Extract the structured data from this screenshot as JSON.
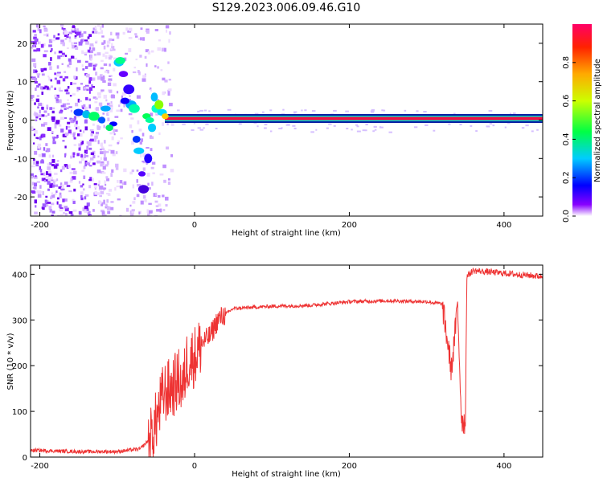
{
  "title": "S129.2023.006.09.46.G10",
  "colors": {
    "snr_line": "#ee3333",
    "carrier": "#ee1144",
    "frame": "#000000"
  },
  "chart_data": [
    {
      "type": "heatmap",
      "xlabel": "Height of straight line (km)",
      "ylabel": "Frequency (Hz)",
      "xlim": [
        -212,
        450
      ],
      "ylim": [
        -25,
        25
      ],
      "x_ticks": [
        -200,
        0,
        200,
        400
      ],
      "y_ticks": [
        -20,
        -10,
        0,
        10,
        20
      ],
      "colorbar": {
        "label": "Normalized spectral amplitude",
        "range": [
          0,
          1
        ],
        "ticks": [
          "0.0",
          "0.2",
          "0.4",
          "0.6",
          "0.8"
        ],
        "colormap": "rainbow"
      },
      "features": [
        {
          "x_start": -212,
          "x_end": -110,
          "description_value": "scattered low-amplitude noise at all frequencies"
        },
        {
          "x_start": -110,
          "x_end": -35,
          "freq": 15,
          "note": "bright branch near 15 Hz at -97 km"
        },
        {
          "x_start": -35,
          "x_end": 450,
          "freq": 0,
          "amplitude": 0.95
        }
      ]
    },
    {
      "type": "line",
      "xlabel": "Height of straight line (km)",
      "ylabel": "SNR (10 * v/v)",
      "xlim": [
        -212,
        450
      ],
      "ylim": [
        0,
        420
      ],
      "x_ticks": [
        -200,
        0,
        200,
        400
      ],
      "y_ticks": [
        0,
        100,
        200,
        300,
        400
      ],
      "series": [
        {
          "x": [
            -212,
            -150,
            -100,
            -70,
            -55,
            -40,
            -30,
            -20,
            -15,
            -10,
            0,
            10,
            20,
            30,
            50,
            100,
            150,
            200,
            250,
            300,
            320,
            328,
            332,
            340,
            345,
            350,
            352,
            360,
            400,
            450
          ],
          "y": [
            15,
            12,
            12,
            18,
            45,
            140,
            150,
            170,
            150,
            210,
            220,
            250,
            265,
            300,
            325,
            330,
            332,
            340,
            342,
            340,
            335,
            240,
            190,
            330,
            85,
            72,
            395,
            408,
            402,
            395
          ]
        }
      ]
    }
  ]
}
